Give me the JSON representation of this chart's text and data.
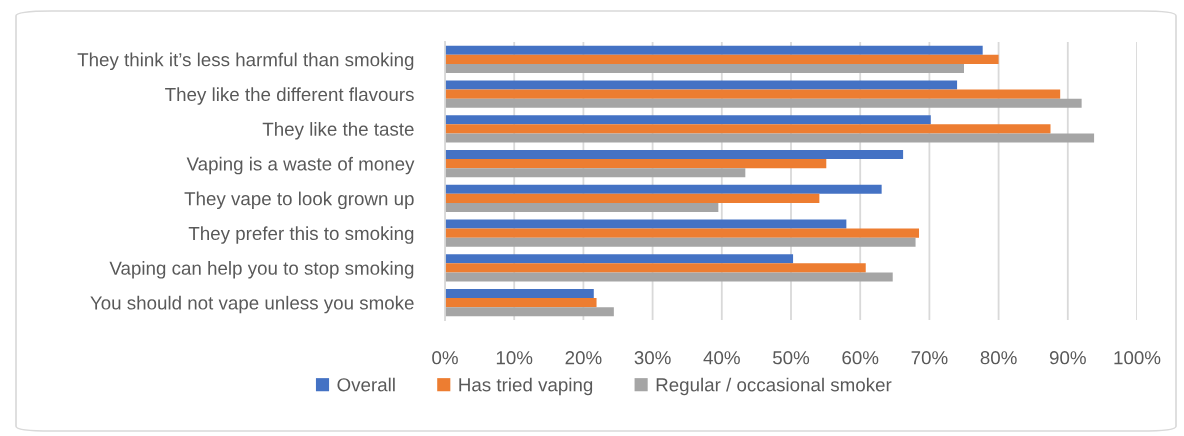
{
  "chart_data": {
    "type": "bar",
    "orientation": "horizontal",
    "categories": [
      "They think it’s less harmful than smoking",
      "They like the different flavours",
      "They like the taste",
      "Vaping is a waste of money",
      "They vape to look grown up",
      "They prefer this to smoking",
      "Vaping can help you to stop smoking",
      "You should not vape unless you smoke"
    ],
    "series": [
      {
        "name": "Overall",
        "color": "#4472c4",
        "values": [
          77.7,
          74.0,
          70.2,
          66.2,
          63.1,
          58.0,
          50.3,
          21.5
        ]
      },
      {
        "name": "Has tried vaping",
        "color": "#ed7d31",
        "values": [
          80.0,
          88.9,
          87.5,
          55.1,
          54.1,
          68.5,
          60.8,
          21.9
        ]
      },
      {
        "name": "Regular / occasional smoker",
        "color": "#a5a5a5",
        "values": [
          75.0,
          92.0,
          93.8,
          43.4,
          39.5,
          68.0,
          64.7,
          24.4
        ]
      }
    ],
    "xlim": [
      0,
      100
    ],
    "xticks": [
      {
        "value": 0,
        "label": "0%"
      },
      {
        "value": 10,
        "label": "10%"
      },
      {
        "value": 20,
        "label": "20%"
      },
      {
        "value": 30,
        "label": "30%"
      },
      {
        "value": 40,
        "label": "40%"
      },
      {
        "value": 50,
        "label": "50%"
      },
      {
        "value": 60,
        "label": "60%"
      },
      {
        "value": 70,
        "label": "70%"
      },
      {
        "value": 80,
        "label": "80%"
      },
      {
        "value": 90,
        "label": "90%"
      },
      {
        "value": 100,
        "label": "100%"
      }
    ],
    "grid": "x",
    "legend": "bottom"
  }
}
